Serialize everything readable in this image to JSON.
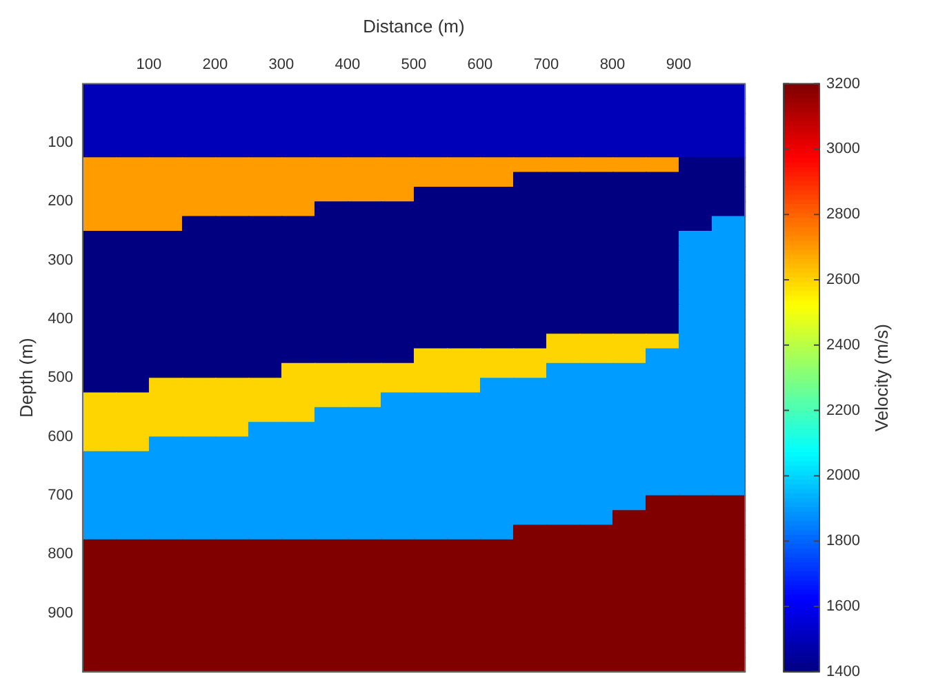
{
  "chart_data": {
    "type": "heatmap",
    "xlabel": "Distance (m)",
    "ylabel": "Depth (m)",
    "clabel": "Velocity (m/s)",
    "x": [
      25,
      75,
      125,
      175,
      225,
      275,
      325,
      375,
      425,
      475,
      525,
      575,
      625,
      675,
      725,
      775,
      825,
      875,
      925,
      975
    ],
    "y": [
      12.5,
      37.5,
      62.5,
      87.5,
      112.5,
      137.5,
      162.5,
      187.5,
      212.5,
      237.5,
      262.5,
      287.5,
      312.5,
      337.5,
      362.5,
      387.5,
      412.5,
      437.5,
      462.5,
      487.5,
      512.5,
      537.5,
      562.5,
      587.5,
      612.5,
      637.5,
      662.5,
      687.5,
      712.5,
      737.5,
      762.5,
      787.5,
      812.5,
      837.5,
      862.5,
      887.5,
      912.5,
      937.5,
      962.5,
      987.5
    ],
    "xlim": [
      0,
      1000
    ],
    "ylim": [
      1000,
      0
    ],
    "xticks": [
      100,
      200,
      300,
      400,
      500,
      600,
      700,
      800,
      900
    ],
    "yticks": [
      100,
      200,
      300,
      400,
      500,
      600,
      700,
      800,
      900
    ],
    "clim": [
      1400,
      3200
    ],
    "cticks": [
      1400,
      1600,
      1800,
      2000,
      2200,
      2400,
      2600,
      2800,
      3000,
      3200
    ],
    "cells": [
      [
        1500,
        1500,
        1500,
        1500,
        1500,
        1500,
        1500,
        1500,
        1500,
        1500,
        1500,
        1500,
        1500,
        1500,
        1500,
        1500,
        1500,
        1500,
        1500,
        1500
      ],
      [
        1500,
        1500,
        1500,
        1500,
        1500,
        1500,
        1500,
        1500,
        1500,
        1500,
        1500,
        1500,
        1500,
        1500,
        1500,
        1500,
        1500,
        1500,
        1500,
        1500
      ],
      [
        1500,
        1500,
        1500,
        1500,
        1500,
        1500,
        1500,
        1500,
        1500,
        1500,
        1500,
        1500,
        1500,
        1500,
        1500,
        1500,
        1500,
        1500,
        1500,
        1500
      ],
      [
        1500,
        1500,
        1500,
        1500,
        1500,
        1500,
        1500,
        1500,
        1500,
        1500,
        1500,
        1500,
        1500,
        1500,
        1500,
        1500,
        1500,
        1500,
        1500,
        1500
      ],
      [
        1500,
        1500,
        1500,
        1500,
        1500,
        1500,
        1500,
        1500,
        1500,
        1500,
        1500,
        1500,
        1500,
        1500,
        1500,
        1500,
        1500,
        1500,
        1500,
        1500
      ],
      [
        2700,
        2700,
        2700,
        2700,
        2700,
        2700,
        2700,
        2700,
        2700,
        2700,
        2700,
        2700,
        2700,
        2700,
        2700,
        2700,
        2700,
        2700,
        1400,
        1400
      ],
      [
        2700,
        2700,
        2700,
        2700,
        2700,
        2700,
        2700,
        2700,
        2700,
        2700,
        2700,
        2700,
        2700,
        1400,
        1400,
        1400,
        1400,
        1400,
        1400,
        1400
      ],
      [
        2700,
        2700,
        2700,
        2700,
        2700,
        2700,
        2700,
        2700,
        2700,
        2700,
        1400,
        1400,
        1400,
        1400,
        1400,
        1400,
        1400,
        1400,
        1400,
        1400
      ],
      [
        2700,
        2700,
        2700,
        2700,
        2700,
        2700,
        2700,
        1400,
        1400,
        1400,
        1400,
        1400,
        1400,
        1400,
        1400,
        1400,
        1400,
        1400,
        1400,
        1400
      ],
      [
        2700,
        2700,
        2700,
        1400,
        1400,
        1400,
        1400,
        1400,
        1400,
        1400,
        1400,
        1400,
        1400,
        1400,
        1400,
        1400,
        1400,
        1400,
        1400,
        1900
      ],
      [
        1400,
        1400,
        1400,
        1400,
        1400,
        1400,
        1400,
        1400,
        1400,
        1400,
        1400,
        1400,
        1400,
        1400,
        1400,
        1400,
        1400,
        1400,
        1900,
        1900
      ],
      [
        1400,
        1400,
        1400,
        1400,
        1400,
        1400,
        1400,
        1400,
        1400,
        1400,
        1400,
        1400,
        1400,
        1400,
        1400,
        1400,
        1400,
        1400,
        1900,
        1900
      ],
      [
        1400,
        1400,
        1400,
        1400,
        1400,
        1400,
        1400,
        1400,
        1400,
        1400,
        1400,
        1400,
        1400,
        1400,
        1400,
        1400,
        1400,
        1400,
        1900,
        1900
      ],
      [
        1400,
        1400,
        1400,
        1400,
        1400,
        1400,
        1400,
        1400,
        1400,
        1400,
        1400,
        1400,
        1400,
        1400,
        1400,
        1400,
        1400,
        1400,
        1900,
        1900
      ],
      [
        1400,
        1400,
        1400,
        1400,
        1400,
        1400,
        1400,
        1400,
        1400,
        1400,
        1400,
        1400,
        1400,
        1400,
        1400,
        1400,
        1400,
        1400,
        1900,
        1900
      ],
      [
        1400,
        1400,
        1400,
        1400,
        1400,
        1400,
        1400,
        1400,
        1400,
        1400,
        1400,
        1400,
        1400,
        1400,
        1400,
        1400,
        1400,
        1400,
        1900,
        1900
      ],
      [
        1400,
        1400,
        1400,
        1400,
        1400,
        1400,
        1400,
        1400,
        1400,
        1400,
        1400,
        1400,
        1400,
        1400,
        1400,
        1400,
        1400,
        1400,
        1900,
        1900
      ],
      [
        1400,
        1400,
        1400,
        1400,
        1400,
        1400,
        1400,
        1400,
        1400,
        1400,
        1400,
        1400,
        1400,
        1400,
        2600,
        2600,
        2600,
        2600,
        1900,
        1900
      ],
      [
        1400,
        1400,
        1400,
        1400,
        1400,
        1400,
        1400,
        1400,
        1400,
        1400,
        2600,
        2600,
        2600,
        2600,
        2600,
        2600,
        2600,
        1900,
        1900,
        1900
      ],
      [
        1400,
        1400,
        1400,
        1400,
        1400,
        1400,
        2600,
        2600,
        2600,
        2600,
        2600,
        2600,
        2600,
        2600,
        1900,
        1900,
        1900,
        1900,
        1900,
        1900
      ],
      [
        1400,
        1400,
        2600,
        2600,
        2600,
        2600,
        2600,
        2600,
        2600,
        2600,
        2600,
        2600,
        1900,
        1900,
        1900,
        1900,
        1900,
        1900,
        1900,
        1900
      ],
      [
        2600,
        2600,
        2600,
        2600,
        2600,
        2600,
        2600,
        2600,
        2600,
        1900,
        1900,
        1900,
        1900,
        1900,
        1900,
        1900,
        1900,
        1900,
        1900,
        1900
      ],
      [
        2600,
        2600,
        2600,
        2600,
        2600,
        2600,
        2600,
        1900,
        1900,
        1900,
        1900,
        1900,
        1900,
        1900,
        1900,
        1900,
        1900,
        1900,
        1900,
        1900
      ],
      [
        2600,
        2600,
        2600,
        2600,
        2600,
        1900,
        1900,
        1900,
        1900,
        1900,
        1900,
        1900,
        1900,
        1900,
        1900,
        1900,
        1900,
        1900,
        1900,
        1900
      ],
      [
        2600,
        2600,
        1900,
        1900,
        1900,
        1900,
        1900,
        1900,
        1900,
        1900,
        1900,
        1900,
        1900,
        1900,
        1900,
        1900,
        1900,
        1900,
        1900,
        1900
      ],
      [
        1900,
        1900,
        1900,
        1900,
        1900,
        1900,
        1900,
        1900,
        1900,
        1900,
        1900,
        1900,
        1900,
        1900,
        1900,
        1900,
        1900,
        1900,
        1900,
        1900
      ],
      [
        1900,
        1900,
        1900,
        1900,
        1900,
        1900,
        1900,
        1900,
        1900,
        1900,
        1900,
        1900,
        1900,
        1900,
        1900,
        1900,
        1900,
        1900,
        1900,
        1900
      ],
      [
        1900,
        1900,
        1900,
        1900,
        1900,
        1900,
        1900,
        1900,
        1900,
        1900,
        1900,
        1900,
        1900,
        1900,
        1900,
        1900,
        1900,
        1900,
        1900,
        1900
      ],
      [
        1900,
        1900,
        1900,
        1900,
        1900,
        1900,
        1900,
        1900,
        1900,
        1900,
        1900,
        1900,
        1900,
        1900,
        1900,
        1900,
        1900,
        3200,
        3200,
        3200
      ],
      [
        1900,
        1900,
        1900,
        1900,
        1900,
        1900,
        1900,
        1900,
        1900,
        1900,
        1900,
        1900,
        1900,
        1900,
        1900,
        1900,
        3200,
        3200,
        3200,
        3200
      ],
      [
        1900,
        1900,
        1900,
        1900,
        1900,
        1900,
        1900,
        1900,
        1900,
        1900,
        1900,
        1900,
        1900,
        3200,
        3200,
        3200,
        3200,
        3200,
        3200,
        3200
      ],
      [
        3200,
        3200,
        3200,
        3200,
        3200,
        3200,
        3200,
        3200,
        3200,
        3200,
        3200,
        3200,
        3200,
        3200,
        3200,
        3200,
        3200,
        3200,
        3200,
        3200
      ],
      [
        3200,
        3200,
        3200,
        3200,
        3200,
        3200,
        3200,
        3200,
        3200,
        3200,
        3200,
        3200,
        3200,
        3200,
        3200,
        3200,
        3200,
        3200,
        3200,
        3200
      ],
      [
        3200,
        3200,
        3200,
        3200,
        3200,
        3200,
        3200,
        3200,
        3200,
        3200,
        3200,
        3200,
        3200,
        3200,
        3200,
        3200,
        3200,
        3200,
        3200,
        3200
      ],
      [
        3200,
        3200,
        3200,
        3200,
        3200,
        3200,
        3200,
        3200,
        3200,
        3200,
        3200,
        3200,
        3200,
        3200,
        3200,
        3200,
        3200,
        3200,
        3200,
        3200
      ],
      [
        3200,
        3200,
        3200,
        3200,
        3200,
        3200,
        3200,
        3200,
        3200,
        3200,
        3200,
        3200,
        3200,
        3200,
        3200,
        3200,
        3200,
        3200,
        3200,
        3200
      ],
      [
        3200,
        3200,
        3200,
        3200,
        3200,
        3200,
        3200,
        3200,
        3200,
        3200,
        3200,
        3200,
        3200,
        3200,
        3200,
        3200,
        3200,
        3200,
        3200,
        3200
      ],
      [
        3200,
        3200,
        3200,
        3200,
        3200,
        3200,
        3200,
        3200,
        3200,
        3200,
        3200,
        3200,
        3200,
        3200,
        3200,
        3200,
        3200,
        3200,
        3200,
        3200
      ],
      [
        3200,
        3200,
        3200,
        3200,
        3200,
        3200,
        3200,
        3200,
        3200,
        3200,
        3200,
        3200,
        3200,
        3200,
        3200,
        3200,
        3200,
        3200,
        3200,
        3200
      ],
      [
        3200,
        3200,
        3200,
        3200,
        3200,
        3200,
        3200,
        3200,
        3200,
        3200,
        3200,
        3200,
        3200,
        3200,
        3200,
        3200,
        3200,
        3200,
        3200,
        3200
      ]
    ]
  }
}
